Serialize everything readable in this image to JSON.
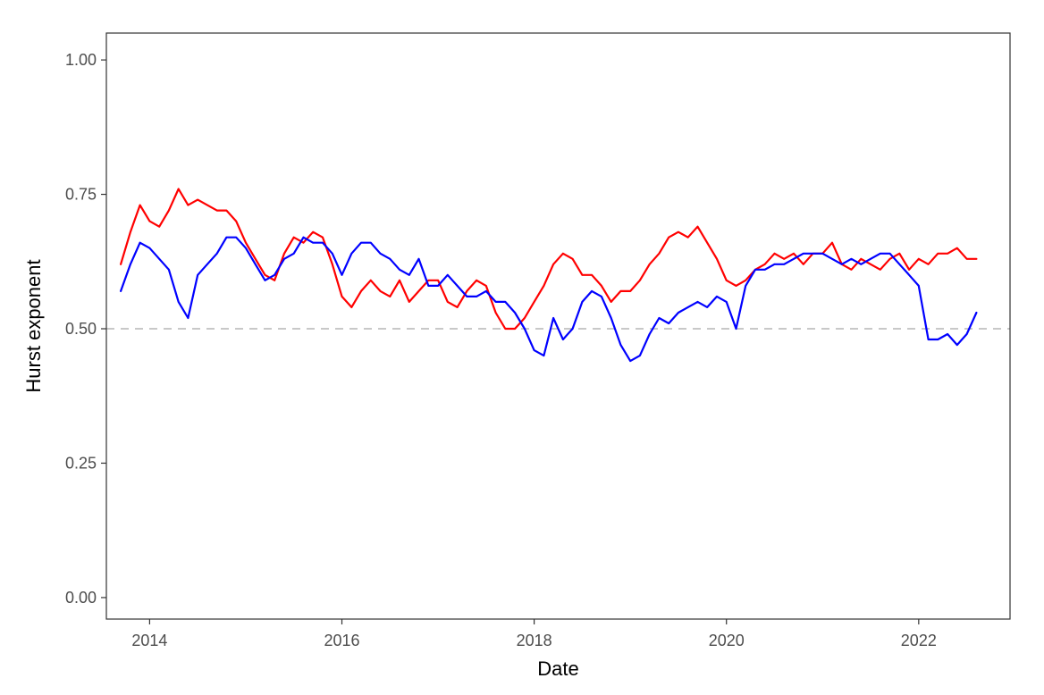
{
  "chart_data": {
    "type": "line",
    "title": "",
    "xlabel": "Date",
    "ylabel": "Hurst exponent",
    "xlim": [
      2013.55,
      2022.95
    ],
    "ylim": [
      -0.04,
      1.05
    ],
    "xticks": [
      2014,
      2016,
      2018,
      2020,
      2022
    ],
    "xtick_labels": [
      "2014",
      "2016",
      "2018",
      "2020",
      "2022"
    ],
    "yticks": [
      0.0,
      0.25,
      0.5,
      0.75,
      1.0
    ],
    "ytick_labels": [
      "0.00",
      "0.25",
      "0.50",
      "0.75",
      "1.00"
    ],
    "grid": false,
    "legend": "none",
    "reference_line": {
      "y": 0.5,
      "style": "dashed",
      "color": "#c8c8c8"
    },
    "series": [
      {
        "color": "#ff0000",
        "x": [
          2013.7,
          2013.8,
          2013.9,
          2014.0,
          2014.1,
          2014.2,
          2014.3,
          2014.4,
          2014.5,
          2014.6,
          2014.7,
          2014.8,
          2014.9,
          2015.0,
          2015.1,
          2015.2,
          2015.3,
          2015.4,
          2015.5,
          2015.6,
          2015.7,
          2015.8,
          2015.9,
          2016.0,
          2016.1,
          2016.2,
          2016.3,
          2016.4,
          2016.5,
          2016.6,
          2016.7,
          2016.8,
          2016.9,
          2017.0,
          2017.1,
          2017.2,
          2017.3,
          2017.4,
          2017.5,
          2017.6,
          2017.7,
          2017.8,
          2017.9,
          2018.0,
          2018.1,
          2018.2,
          2018.3,
          2018.4,
          2018.5,
          2018.6,
          2018.7,
          2018.8,
          2018.9,
          2019.0,
          2019.1,
          2019.2,
          2019.3,
          2019.4,
          2019.5,
          2019.6,
          2019.7,
          2019.8,
          2019.9,
          2020.0,
          2020.1,
          2020.2,
          2020.3,
          2020.4,
          2020.5,
          2020.6,
          2020.7,
          2020.8,
          2020.9,
          2021.0,
          2021.1,
          2021.2,
          2021.3,
          2021.4,
          2021.5,
          2021.6,
          2021.7,
          2021.8,
          2021.9,
          2022.0,
          2022.1,
          2022.2,
          2022.3,
          2022.4,
          2022.5,
          2022.6
        ],
        "y": [
          0.62,
          0.68,
          0.73,
          0.7,
          0.69,
          0.72,
          0.76,
          0.73,
          0.74,
          0.73,
          0.72,
          0.72,
          0.7,
          0.66,
          0.63,
          0.6,
          0.59,
          0.64,
          0.67,
          0.66,
          0.68,
          0.67,
          0.62,
          0.56,
          0.54,
          0.57,
          0.59,
          0.57,
          0.56,
          0.59,
          0.55,
          0.57,
          0.59,
          0.59,
          0.55,
          0.54,
          0.57,
          0.59,
          0.58,
          0.53,
          0.5,
          0.5,
          0.52,
          0.55,
          0.58,
          0.62,
          0.64,
          0.63,
          0.6,
          0.6,
          0.58,
          0.55,
          0.57,
          0.57,
          0.59,
          0.62,
          0.64,
          0.67,
          0.68,
          0.67,
          0.69,
          0.66,
          0.63,
          0.59,
          0.58,
          0.59,
          0.61,
          0.62,
          0.64,
          0.63,
          0.64,
          0.62,
          0.64,
          0.64,
          0.66,
          0.62,
          0.61,
          0.63,
          0.62,
          0.61,
          0.63,
          0.64,
          0.61,
          0.63,
          0.62,
          0.64,
          0.64,
          0.65,
          0.63,
          0.63
        ]
      },
      {
        "color": "#0000ff",
        "x": [
          2013.7,
          2013.8,
          2013.9,
          2014.0,
          2014.1,
          2014.2,
          2014.3,
          2014.4,
          2014.5,
          2014.6,
          2014.7,
          2014.8,
          2014.9,
          2015.0,
          2015.1,
          2015.2,
          2015.3,
          2015.4,
          2015.5,
          2015.6,
          2015.7,
          2015.8,
          2015.9,
          2016.0,
          2016.1,
          2016.2,
          2016.3,
          2016.4,
          2016.5,
          2016.6,
          2016.7,
          2016.8,
          2016.9,
          2017.0,
          2017.1,
          2017.2,
          2017.3,
          2017.4,
          2017.5,
          2017.6,
          2017.7,
          2017.8,
          2017.9,
          2018.0,
          2018.1,
          2018.2,
          2018.3,
          2018.4,
          2018.5,
          2018.6,
          2018.7,
          2018.8,
          2018.9,
          2019.0,
          2019.1,
          2019.2,
          2019.3,
          2019.4,
          2019.5,
          2019.6,
          2019.7,
          2019.8,
          2019.9,
          2020.0,
          2020.1,
          2020.2,
          2020.3,
          2020.4,
          2020.5,
          2020.6,
          2020.7,
          2020.8,
          2020.9,
          2021.0,
          2021.1,
          2021.2,
          2021.3,
          2021.4,
          2021.5,
          2021.6,
          2021.7,
          2021.8,
          2021.9,
          2022.0,
          2022.1,
          2022.2,
          2022.3,
          2022.4,
          2022.5,
          2022.6
        ],
        "y": [
          0.57,
          0.62,
          0.66,
          0.65,
          0.63,
          0.61,
          0.55,
          0.52,
          0.6,
          0.62,
          0.64,
          0.67,
          0.67,
          0.65,
          0.62,
          0.59,
          0.6,
          0.63,
          0.64,
          0.67,
          0.66,
          0.66,
          0.64,
          0.6,
          0.64,
          0.66,
          0.66,
          0.64,
          0.63,
          0.61,
          0.6,
          0.63,
          0.58,
          0.58,
          0.6,
          0.58,
          0.56,
          0.56,
          0.57,
          0.55,
          0.55,
          0.53,
          0.5,
          0.46,
          0.45,
          0.52,
          0.48,
          0.5,
          0.55,
          0.57,
          0.56,
          0.52,
          0.47,
          0.44,
          0.45,
          0.49,
          0.52,
          0.51,
          0.53,
          0.54,
          0.55,
          0.54,
          0.56,
          0.55,
          0.5,
          0.58,
          0.61,
          0.61,
          0.62,
          0.62,
          0.63,
          0.64,
          0.64,
          0.64,
          0.63,
          0.62,
          0.63,
          0.62,
          0.63,
          0.64,
          0.64,
          0.62,
          0.6,
          0.58,
          0.48,
          0.48,
          0.49,
          0.47,
          0.49,
          0.53
        ]
      }
    ]
  }
}
